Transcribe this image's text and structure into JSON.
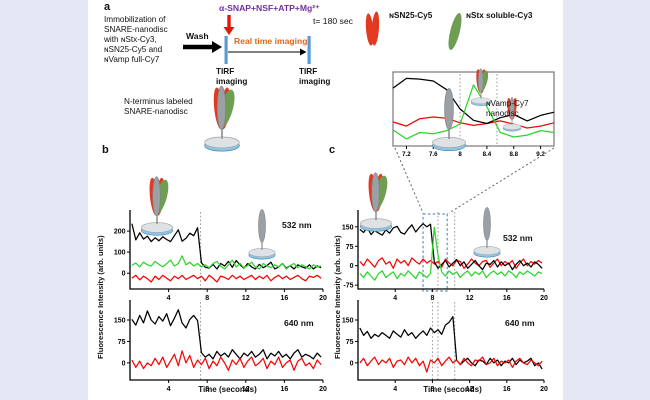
{
  "colors": {
    "background": "#e4e6f4",
    "paper": "#ffffff",
    "trace_black": "#000000",
    "trace_red": "#f40505",
    "trace_green": "#2fd32f",
    "timeline_blue": "#5b9bd5",
    "treatment_purple": "#7030a0",
    "imaging_orange": "#e2641c",
    "arrow_red": "#e8140c",
    "bundle_red": "#e23a20",
    "bundle_green": "#6f9e53",
    "bundle_gray": "#9aa0a3",
    "disc_top": "#dfe2e4",
    "disc_blue": "#8fc6e4",
    "disc_rim_stroke": "#4d86ad",
    "highlight_blue": "#7ba7d7",
    "vline_gray": "#909090"
  },
  "panel_a": {
    "label": "a",
    "immobilization_text": "Immobilization of\nSNARE-nanodisc\nwith ɴStx-Cy3,\nɴSN25-Cy5 and\nɴVamp full-Cy7",
    "wash_label": "Wash",
    "treatment_label": "α-SNAP+NSF+ATP+Mg²⁺",
    "realtime_label": "Real time imaging",
    "time_label": "t= 180 sec",
    "tirf_label_start": "TIRF\nimaging",
    "tirf_label_end": "TIRF\nimaging",
    "before_nanodisc_label": "N-terminus labeled\nSNARE-nanodisc",
    "after_nanodisc_label": "ɴVamp-Cy7\nnanodisc",
    "legend": [
      {
        "label": "ɴSN25-Cy5",
        "icon": "red-pair"
      },
      {
        "label": "ɴStx soluble-Cy3",
        "icon": "green-leaf"
      }
    ]
  },
  "panel_b": {
    "label": "b",
    "ylabel": "Fluorescence Intensity (arb. units)",
    "xlabel": "Time (seconds)"
  },
  "panel_c": {
    "label": "c",
    "ylabel": "Fluorescence Intensity (arb. units)",
    "xlabel": "Time (seconds)"
  },
  "chart_data": [
    {
      "id": "b_532",
      "type": "line",
      "label": "532 nm",
      "xlim": [
        0,
        20
      ],
      "ylim": [
        -75,
        300
      ],
      "xticks": [
        4,
        8,
        12,
        16,
        20
      ],
      "yticks": [
        0,
        100,
        200
      ],
      "x_start": 0.2,
      "x_step": 0.4,
      "vlines": [
        7.3
      ],
      "series": [
        {
          "name": "red",
          "values": [
            -24,
            -10,
            -32,
            -14,
            -26,
            -42,
            -14,
            -30,
            -10,
            -24,
            -36,
            -14,
            -26,
            -10,
            -30,
            -20,
            -10,
            -26,
            -14,
            -36,
            -10,
            -24,
            -42,
            -14,
            -20,
            -30,
            -10,
            -26,
            -14,
            -30,
            -20,
            -10,
            -30,
            -14,
            -26,
            -10,
            -36,
            -20,
            -10,
            -26,
            -14,
            -30,
            -20,
            -10,
            -26,
            -36,
            -14,
            -20,
            -10,
            -24
          ]
        },
        {
          "name": "black",
          "values": [
            235,
            158,
            192,
            162,
            176,
            150,
            168,
            154,
            173,
            160,
            150,
            178,
            206,
            152,
            166,
            190,
            178,
            216,
            50,
            28,
            24,
            42,
            20,
            46,
            34,
            56,
            28,
            60,
            40,
            24,
            46,
            30,
            20,
            42,
            26,
            36,
            52,
            20,
            30,
            46,
            24,
            36,
            20,
            40,
            30,
            24,
            40,
            20,
            34,
            26
          ]
        },
        {
          "name": "green",
          "values": [
            38,
            48,
            30,
            52,
            40,
            34,
            56,
            42,
            30,
            46,
            62,
            34,
            46,
            82,
            40,
            52,
            34,
            46,
            30,
            40,
            26,
            46,
            56,
            34,
            20,
            40,
            62,
            30,
            46,
            26,
            36,
            52,
            30,
            20,
            46,
            34,
            26,
            40,
            30,
            46,
            20,
            36,
            46,
            26,
            40,
            30,
            20,
            40,
            30,
            34
          ]
        }
      ]
    },
    {
      "id": "b_640",
      "type": "line",
      "label": "640 nm",
      "xlim": [
        0,
        20
      ],
      "ylim": [
        -60,
        220
      ],
      "xticks": [
        4,
        8,
        12,
        16,
        20
      ],
      "yticks": [
        0,
        75,
        150
      ],
      "x_start": 0.2,
      "x_step": 0.4,
      "vlines": [
        7.3
      ],
      "series": [
        {
          "name": "black",
          "values": [
            152,
            132,
            166,
            140,
            182,
            150,
            136,
            162,
            146,
            172,
            130,
            156,
            186,
            140,
            122,
            152,
            166,
            148,
            36,
            20,
            30,
            14,
            40,
            24,
            34,
            20,
            46,
            30,
            14,
            34,
            24,
            40,
            20,
            30,
            46,
            14,
            34,
            24,
            40,
            20,
            30,
            14,
            34,
            46,
            20,
            30,
            24,
            14,
            34,
            20
          ]
        },
        {
          "name": "red",
          "values": [
            10,
            -16,
            6,
            -20,
            0,
            -10,
            16,
            -6,
            20,
            -16,
            6,
            30,
            -10,
            42,
            0,
            26,
            -16,
            10,
            -6,
            16,
            -20,
            6,
            -10,
            20,
            0,
            -26,
            10,
            -6,
            16,
            -16,
            6,
            20,
            -10,
            0,
            16,
            -20,
            6,
            -6,
            20,
            -16,
            0,
            10,
            -26,
            6,
            16,
            -10,
            0,
            -20,
            10,
            -6
          ]
        }
      ]
    },
    {
      "id": "c_532",
      "type": "line",
      "label": "532 nm",
      "xlim": [
        0,
        20
      ],
      "ylim": [
        -90,
        215
      ],
      "xticks": [
        4,
        8,
        12,
        16,
        20
      ],
      "yticks": [
        -75,
        0,
        75,
        150
      ],
      "x_start": 0.2,
      "x_step": 0.4,
      "vlines": [
        8.6,
        10.4
      ],
      "highlight_rect": {
        "x0": 7.0,
        "x1": 9.6
      },
      "series": [
        {
          "name": "red",
          "values": [
            16,
            0,
            26,
            10,
            -6,
            20,
            30,
            6,
            16,
            -10,
            26,
            10,
            20,
            0,
            30,
            16,
            6,
            26,
            10,
            20,
            6,
            16,
            -6,
            26,
            10,
            0,
            20,
            16,
            -10,
            6,
            26,
            10,
            0,
            16,
            20,
            -6,
            10,
            26,
            0,
            16,
            6,
            20,
            -10,
            10,
            26,
            0,
            16,
            6,
            20,
            10
          ]
        },
        {
          "name": "black",
          "values": [
            140,
            128,
            148,
            120,
            136,
            126,
            118,
            138,
            126,
            146,
            152,
            128,
            122,
            142,
            158,
            130,
            148,
            162,
            150,
            160,
            15,
            -10,
            5,
            20,
            -5,
            10,
            24,
            0,
            15,
            -10,
            5,
            20,
            0,
            -15,
            10,
            5,
            20,
            -5,
            15,
            0,
            10,
            -15,
            5,
            20,
            0,
            10,
            -5,
            15,
            5,
            -10
          ]
        },
        {
          "name": "green",
          "values": [
            -30,
            -46,
            -24,
            -40,
            -56,
            -30,
            -20,
            -46,
            -34,
            -24,
            -50,
            -30,
            -40,
            -20,
            -34,
            -50,
            -24,
            -34,
            -46,
            -30,
            148,
            40,
            -24,
            -40,
            -20,
            -34,
            -24,
            -46,
            -30,
            -20,
            -40,
            -24,
            -34,
            -20,
            -46,
            -30,
            -20,
            -34,
            -24,
            -40,
            -20,
            -30,
            -46,
            -24,
            -34,
            -20,
            -30,
            -40,
            -24,
            -30
          ]
        }
      ]
    },
    {
      "id": "c_640",
      "type": "line",
      "label": "640 nm",
      "xlim": [
        0,
        20
      ],
      "ylim": [
        -60,
        220
      ],
      "xticks": [
        4,
        8,
        12,
        16,
        20
      ],
      "yticks": [
        0,
        75,
        150
      ],
      "x_start": 0.2,
      "x_step": 0.4,
      "vlines": [
        8.0,
        8.6,
        10.4
      ],
      "series": [
        {
          "name": "black",
          "values": [
            122,
            96,
            110,
            86,
            100,
            92,
            106,
            96,
            86,
            112,
            100,
            90,
            116,
            96,
            106,
            86,
            100,
            112,
            96,
            122,
            106,
            116,
            100,
            132,
            142,
            162,
            10,
            -6,
            6,
            16,
            0,
            -10,
            10,
            6,
            -6,
            16,
            0,
            10,
            -10,
            6,
            0,
            16,
            -6,
            10,
            0,
            6,
            16,
            -10,
            0,
            -22
          ]
        },
        {
          "name": "red",
          "values": [
            0,
            16,
            -10,
            6,
            20,
            -6,
            10,
            0,
            16,
            -16,
            6,
            10,
            -6,
            20,
            0,
            16,
            -10,
            6,
            -32,
            10,
            0,
            16,
            -10,
            6,
            20,
            0,
            10,
            -6,
            16,
            0,
            -10,
            10,
            6,
            20,
            -6,
            0,
            16,
            -10,
            6,
            0,
            10,
            -16,
            6,
            16,
            0,
            -6,
            10,
            0,
            -10,
            6
          ]
        }
      ]
    },
    {
      "id": "inset",
      "type": "line",
      "label": "",
      "xlim": [
        7.0,
        9.4
      ],
      "ylim": [
        -60,
        170
      ],
      "xticks": [
        7.2,
        7.6,
        8.0,
        8.4,
        8.8,
        9.2
      ],
      "yticks": [],
      "x_start": 7.0,
      "x_step": 0.2,
      "vlines": [
        8.0,
        8.55
      ],
      "box": true,
      "series": [
        {
          "name": "red",
          "values": [
            15,
            2,
            25,
            30,
            26,
            12,
            4,
            10,
            18,
            8,
            -4,
            2,
            12
          ]
        },
        {
          "name": "black",
          "values": [
            120,
            150,
            148,
            142,
            115,
            55,
            20,
            10,
            28,
            38,
            18,
            35,
            45
          ]
        },
        {
          "name": "green",
          "values": [
            -10,
            -38,
            -18,
            -22,
            -12,
            8,
            130,
            62,
            -18,
            -32,
            -26,
            -12,
            -18
          ]
        }
      ]
    }
  ]
}
